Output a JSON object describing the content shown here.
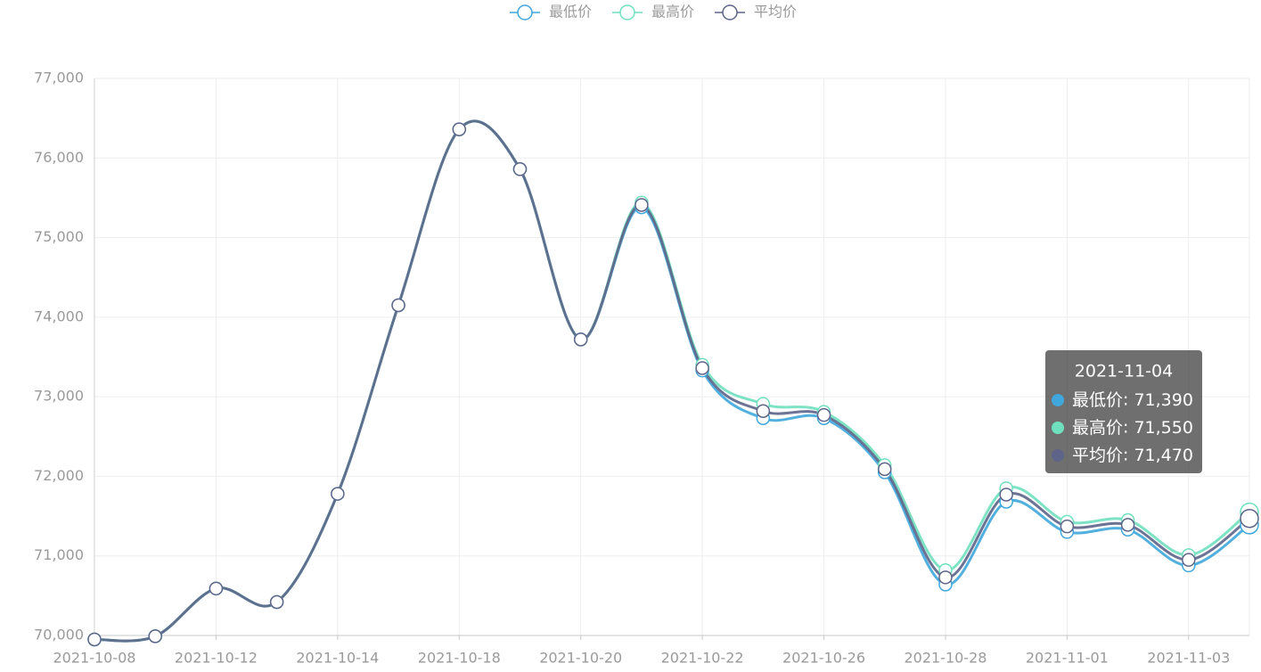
{
  "chart_data": {
    "type": "line",
    "smooth": true,
    "categories": [
      "2021-10-08",
      null,
      "2021-10-12",
      null,
      "2021-10-14",
      null,
      "2021-10-18",
      null,
      "2021-10-20",
      null,
      "2021-10-22",
      null,
      "2021-10-26",
      null,
      "2021-10-28",
      null,
      "2021-11-01",
      null,
      "2021-11-03",
      "2021-11-04"
    ],
    "series": [
      {
        "name": "最低价",
        "color": "#3fa7dc",
        "values": [
          69950,
          69990,
          70590,
          70420,
          71780,
          74150,
          76360,
          75860,
          73720,
          75380,
          73330,
          72730,
          72730,
          72050,
          70640,
          71680,
          71300,
          71330,
          70880,
          71390
        ],
        "value_labels": [
          null,
          null,
          null,
          null,
          null,
          null,
          null,
          null,
          null,
          null,
          null,
          null,
          null,
          null,
          null,
          null,
          null,
          null,
          null,
          "71,390"
        ]
      },
      {
        "name": "最高价",
        "color": "#6fe0be",
        "values": [
          69950,
          69990,
          70590,
          70420,
          71780,
          74150,
          76360,
          75860,
          73720,
          75440,
          73400,
          72910,
          72810,
          72140,
          70820,
          71850,
          71430,
          71450,
          71010,
          71550
        ],
        "value_labels": [
          null,
          null,
          null,
          null,
          null,
          null,
          null,
          null,
          null,
          null,
          null,
          null,
          null,
          null,
          null,
          null,
          null,
          null,
          null,
          "71,550"
        ]
      },
      {
        "name": "平均价",
        "color": "#5d6488",
        "values": [
          69950,
          69990,
          70590,
          70420,
          71780,
          74150,
          76360,
          75860,
          73720,
          75410,
          73360,
          72820,
          72770,
          72090,
          70730,
          71770,
          71370,
          71390,
          70950,
          71470
        ],
        "value_labels": [
          null,
          null,
          null,
          null,
          null,
          null,
          null,
          null,
          null,
          null,
          null,
          null,
          null,
          null,
          null,
          null,
          null,
          null,
          null,
          "71,470"
        ]
      }
    ],
    "ylim": [
      70000,
      77000
    ],
    "yticks": [
      {
        "value": 70000,
        "label": "70,000"
      },
      {
        "value": 71000,
        "label": "71,000"
      },
      {
        "value": 72000,
        "label": "72,000"
      },
      {
        "value": 73000,
        "label": "73,000"
      },
      {
        "value": 74000,
        "label": "74,000"
      },
      {
        "value": 75000,
        "label": "75,000"
      },
      {
        "value": 76000,
        "label": "76,000"
      },
      {
        "value": 77000,
        "label": "77,000"
      }
    ],
    "grid": true,
    "legend": "top"
  }
}
